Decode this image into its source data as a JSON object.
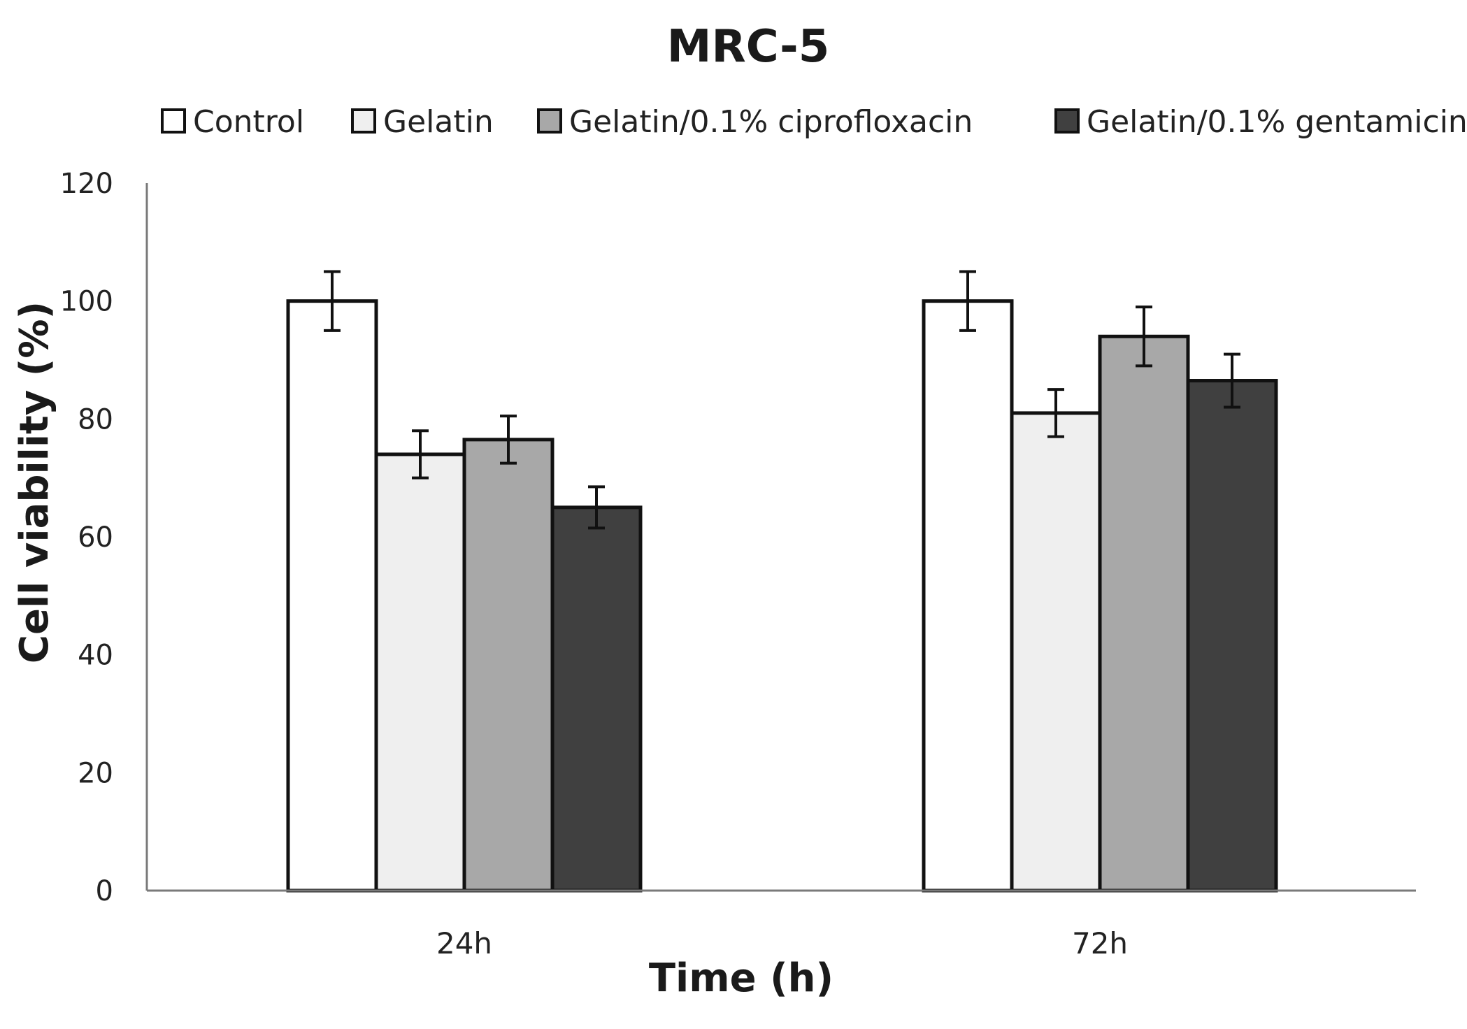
{
  "chart_data": {
    "type": "bar",
    "title": "MRC-5",
    "xlabel": "Time (h)",
    "ylabel": "Cell viability (%)",
    "ylim": [
      0,
      120
    ],
    "yticks": [
      0,
      20,
      40,
      60,
      80,
      100,
      120
    ],
    "categories": [
      "24h",
      "72h"
    ],
    "legend_position": "top",
    "grid": false,
    "series": [
      {
        "name": "Control",
        "color": "#ffffff",
        "values": [
          100,
          100
        ],
        "errors": [
          5,
          5
        ]
      },
      {
        "name": "Gelatin",
        "color": "#efefef",
        "values": [
          74,
          81
        ],
        "errors": [
          4,
          4
        ]
      },
      {
        "name": "Gelatin/0.1% ciprofloxacin",
        "color": "#a8a8a8",
        "values": [
          76.5,
          94
        ],
        "errors": [
          4,
          5
        ]
      },
      {
        "name": "Gelatin/0.1% gentamicin",
        "color": "#404040",
        "values": [
          65,
          86.5
        ],
        "errors": [
          3.5,
          4.5
        ]
      }
    ]
  }
}
